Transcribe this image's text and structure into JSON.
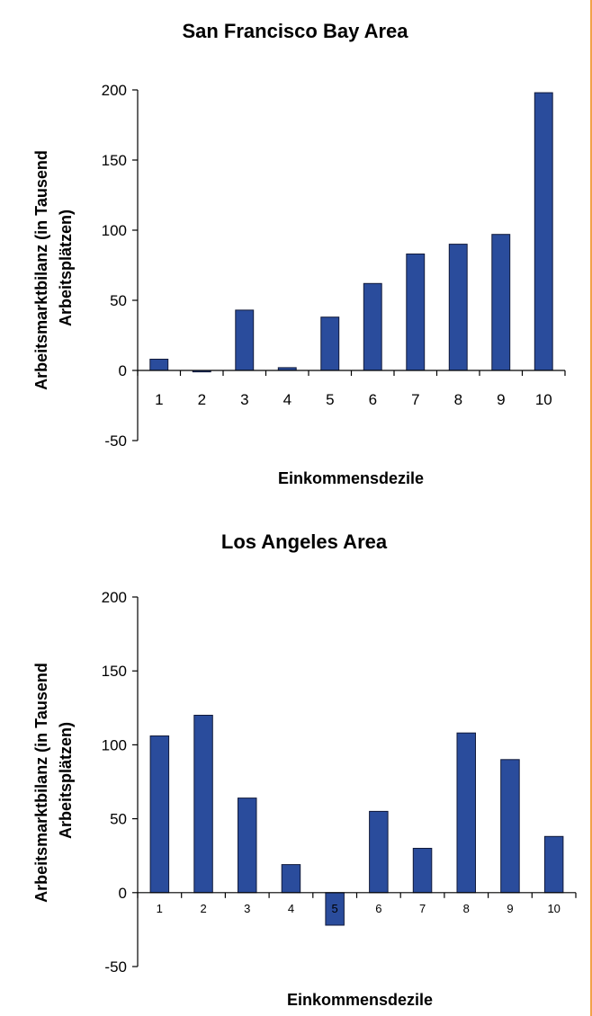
{
  "chart_data": [
    {
      "type": "bar",
      "title": "San Francisco Bay Area",
      "xlabel": "Einkommensdezile",
      "ylabel": "Arbeitsmarktbilanz (in Tausend Arbeitsplätzen)",
      "ylabel_lines": [
        "Arbeitsmarktbilanz (in Tausend",
        "Arbeitsplätzen)"
      ],
      "categories": [
        "1",
        "2",
        "3",
        "4",
        "5",
        "6",
        "7",
        "8",
        "9",
        "10"
      ],
      "values": [
        8,
        -1,
        43,
        2,
        38,
        62,
        83,
        90,
        97,
        198
      ],
      "ylim": [
        -50,
        200
      ],
      "yticks": [
        "200",
        "150",
        "100",
        "50",
        "0",
        "-50"
      ],
      "bar_color": "#2a4c9c",
      "grid": false,
      "legend": "none"
    },
    {
      "type": "bar",
      "title": "Los Angeles Area",
      "xlabel": "Einkommensdezile",
      "ylabel": "Arbeitsmarktbilanz (in Tausend Arbeitsplätzen)",
      "ylabel_lines": [
        "Arbeitsmarktbilanz (in Tausend",
        "Arbeitsplätzen)"
      ],
      "categories": [
        "1",
        "2",
        "3",
        "4",
        "5",
        "6",
        "7",
        "8",
        "9",
        "10"
      ],
      "values": [
        106,
        120,
        64,
        19,
        -22,
        55,
        30,
        108,
        90,
        38
      ],
      "ylim": [
        -50,
        200
      ],
      "yticks": [
        "200",
        "150",
        "100",
        "50",
        "0",
        "-50"
      ],
      "bar_color": "#2a4c9c",
      "grid": false,
      "legend": "none"
    }
  ]
}
